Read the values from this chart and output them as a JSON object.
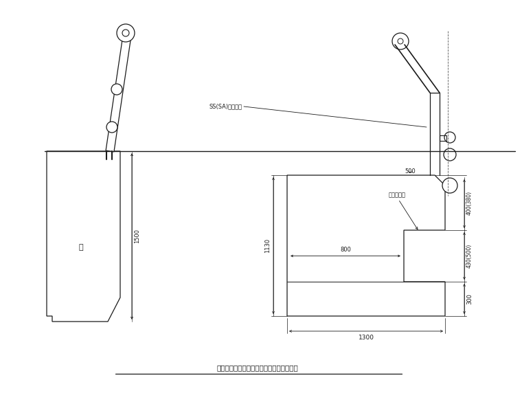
{
  "bg_color": "#ffffff",
  "line_color": "#000000",
  "title": "拦墙上为人行道栏杆和防撞栏杆结构示意图",
  "label_wall": "墙",
  "label_guardrail": "SS(SA)级防撞栏",
  "label_road_surface": "车行道标面",
  "dim_1500": "1500",
  "dim_1130": "1130",
  "dim_1300": "1300",
  "dim_300": "300",
  "dim_400_380": "400(380)",
  "dim_430_500": "430(500)",
  "dim_500": "500",
  "dim_800": "800"
}
